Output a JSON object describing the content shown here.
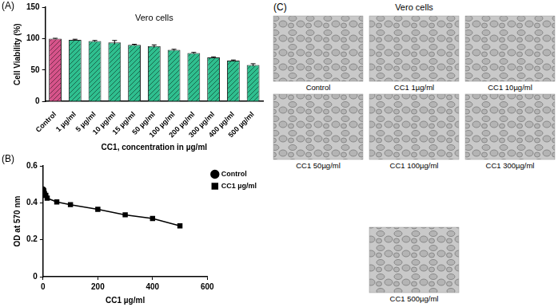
{
  "chart_data": [
    {
      "panel_label": "(A)",
      "type": "bar",
      "title": "Vero cells",
      "x_label": "CC1, concentration in µg/ml",
      "y_label": "Cell Viability (%)",
      "categories": [
        "Control",
        "1 µg/ml",
        "5 µg/ml",
        "10 µg/ml",
        "15 µg/ml",
        "50 µg/ml",
        "100 µg/ml",
        "200 µg/ml",
        "300 µg/ml",
        "400 µg/ml",
        "500 µg/ml"
      ],
      "values": [
        100,
        98,
        96,
        94,
        90,
        88,
        82,
        77,
        70,
        65,
        58
      ],
      "errors": [
        0.5,
        1,
        1,
        3,
        1,
        2,
        1,
        1,
        1,
        1,
        2
      ],
      "colors": [
        "#d6538a",
        "#2fbf8f",
        "#2fbf8f",
        "#2fbf8f",
        "#2fbf8f",
        "#2fbf8f",
        "#2fbf8f",
        "#2fbf8f",
        "#2fbf8f",
        "#2fbf8f",
        "#2fbf8f"
      ],
      "ylim": [
        0,
        150
      ],
      "yticks": [
        0,
        50,
        100,
        150
      ],
      "grid": false
    },
    {
      "panel_label": "(B)",
      "type": "line",
      "x_label": "CC1 µg/ml",
      "y_label": "OD at 570 nm",
      "series": [
        {
          "name": "Control",
          "color": "#000000",
          "marker": "circle",
          "x": [
            0
          ],
          "values": [
            0.47
          ]
        },
        {
          "name": "CC1 µg/ml",
          "color": "#000000",
          "marker": "square",
          "x": [
            1,
            5,
            10,
            15,
            50,
            100,
            200,
            300,
            400,
            500
          ],
          "values": [
            0.46,
            0.45,
            0.44,
            0.425,
            0.405,
            0.39,
            0.365,
            0.335,
            0.315,
            0.275
          ]
        }
      ],
      "xlim": [
        0,
        600
      ],
      "xticks": [
        0,
        200,
        400,
        600
      ],
      "ylim": [
        0,
        0.6
      ],
      "yticks": [
        0,
        0.2,
        0.4,
        0.6
      ],
      "legend": "right",
      "grid": false
    }
  ],
  "image_panel": {
    "panel_label": "(C)",
    "title": "Vero cells",
    "images": [
      {
        "label": "Control"
      },
      {
        "label": "CC1  1µg/ml"
      },
      {
        "label": "CC1 10µg/ml"
      },
      {
        "label": "CC1 50µg/ml"
      },
      {
        "label": "CC1 100µg/ml"
      },
      {
        "label": "CC1 300µg/ml"
      },
      {
        "label": "CC1 500µg/ml"
      }
    ]
  }
}
